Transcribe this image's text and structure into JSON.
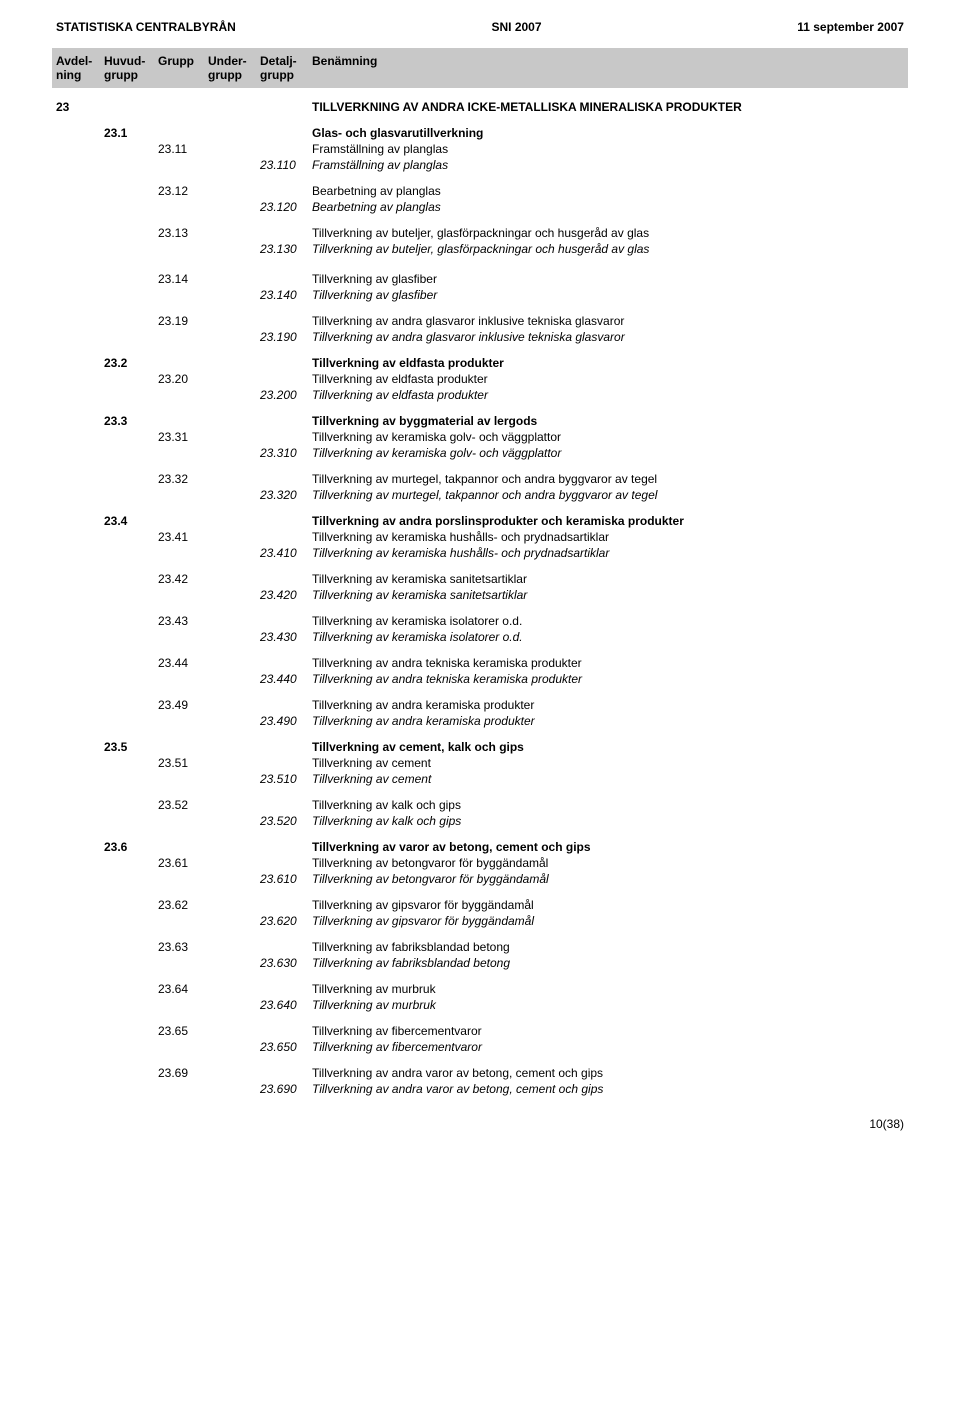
{
  "header": {
    "left": "STATISTISKA CENTRALBYRÅN",
    "center": "SNI 2007",
    "right": "11 september 2007"
  },
  "columnHeaders": {
    "avdelning": "Avdel-\nning",
    "huvudgrupp": "Huvud-\ngrupp",
    "grupp": "Grupp",
    "undergrupp": "Under-\ngrupp",
    "detaljgrupp": "Detalj-\ngrupp",
    "benamning": "Benämning"
  },
  "pageNumber": "10(38)",
  "rows": [
    {
      "avdelning": "23",
      "huvudgrupp": "",
      "grupp": "",
      "undergrupp": "",
      "detaljgrupp": "",
      "benamning": "TILLVERKNING AV ANDRA ICKE-METALLISKA MINERALISKA PRODUKTER",
      "bold": true,
      "gapBefore": 4,
      "gapAfter": 10
    },
    {
      "avdelning": "",
      "huvudgrupp": "23.1",
      "grupp": "",
      "undergrupp": "",
      "detaljgrupp": "",
      "benamning": "Glas- och glasvarutillverkning",
      "bold": true
    },
    {
      "avdelning": "",
      "huvudgrupp": "",
      "grupp": "23.11",
      "undergrupp": "",
      "detaljgrupp": "",
      "benamning": "Framställning av planglas"
    },
    {
      "avdelning": "",
      "huvudgrupp": "",
      "grupp": "",
      "undergrupp": "",
      "detaljgrupp": "23.110",
      "benamning": "Framställning av planglas",
      "italic": true,
      "gapAfter": 10
    },
    {
      "avdelning": "",
      "huvudgrupp": "",
      "grupp": "23.12",
      "undergrupp": "",
      "detaljgrupp": "",
      "benamning": "Bearbetning av planglas"
    },
    {
      "avdelning": "",
      "huvudgrupp": "",
      "grupp": "",
      "undergrupp": "",
      "detaljgrupp": "23.120",
      "benamning": "Bearbetning av planglas",
      "italic": true,
      "gapAfter": 10
    },
    {
      "avdelning": "",
      "huvudgrupp": "",
      "grupp": "23.13",
      "undergrupp": "",
      "detaljgrupp": "",
      "benamning": "Tillverkning av buteljer, glasförpackningar och husgeråd av glas"
    },
    {
      "avdelning": "",
      "huvudgrupp": "",
      "grupp": "",
      "undergrupp": "",
      "detaljgrupp": "23.130",
      "benamning": "Tillverkning av buteljer, glasförpackningar och husgeråd av glas",
      "italic": true,
      "gapAfter": 14
    },
    {
      "avdelning": "",
      "huvudgrupp": "",
      "grupp": "23.14",
      "undergrupp": "",
      "detaljgrupp": "",
      "benamning": "Tillverkning av glasfiber"
    },
    {
      "avdelning": "",
      "huvudgrupp": "",
      "grupp": "",
      "undergrupp": "",
      "detaljgrupp": "23.140",
      "benamning": "Tillverkning av glasfiber",
      "italic": true,
      "gapAfter": 10
    },
    {
      "avdelning": "",
      "huvudgrupp": "",
      "grupp": "23.19",
      "undergrupp": "",
      "detaljgrupp": "",
      "benamning": "Tillverkning av andra glasvaror inklusive tekniska glasvaror"
    },
    {
      "avdelning": "",
      "huvudgrupp": "",
      "grupp": "",
      "undergrupp": "",
      "detaljgrupp": "23.190",
      "benamning": "Tillverkning av andra glasvaror inklusive tekniska glasvaror",
      "italic": true,
      "gapAfter": 10
    },
    {
      "avdelning": "",
      "huvudgrupp": "23.2",
      "grupp": "",
      "undergrupp": "",
      "detaljgrupp": "",
      "benamning": "Tillverkning av eldfasta produkter",
      "bold": true
    },
    {
      "avdelning": "",
      "huvudgrupp": "",
      "grupp": "23.20",
      "undergrupp": "",
      "detaljgrupp": "",
      "benamning": "Tillverkning av eldfasta produkter"
    },
    {
      "avdelning": "",
      "huvudgrupp": "",
      "grupp": "",
      "undergrupp": "",
      "detaljgrupp": "23.200",
      "benamning": "Tillverkning av eldfasta produkter",
      "italic": true,
      "gapAfter": 10
    },
    {
      "avdelning": "",
      "huvudgrupp": "23.3",
      "grupp": "",
      "undergrupp": "",
      "detaljgrupp": "",
      "benamning": "Tillverkning av byggmaterial av lergods",
      "bold": true
    },
    {
      "avdelning": "",
      "huvudgrupp": "",
      "grupp": "23.31",
      "undergrupp": "",
      "detaljgrupp": "",
      "benamning": "Tillverkning av keramiska golv- och väggplattor"
    },
    {
      "avdelning": "",
      "huvudgrupp": "",
      "grupp": "",
      "undergrupp": "",
      "detaljgrupp": "23.310",
      "benamning": "Tillverkning av keramiska golv- och väggplattor",
      "italic": true,
      "gapAfter": 10
    },
    {
      "avdelning": "",
      "huvudgrupp": "",
      "grupp": "23.32",
      "undergrupp": "",
      "detaljgrupp": "",
      "benamning": "Tillverkning av murtegel, takpannor och andra byggvaror av tegel"
    },
    {
      "avdelning": "",
      "huvudgrupp": "",
      "grupp": "",
      "undergrupp": "",
      "detaljgrupp": "23.320",
      "benamning": "Tillverkning av murtegel, takpannor och andra byggvaror av tegel",
      "italic": true,
      "gapAfter": 10
    },
    {
      "avdelning": "",
      "huvudgrupp": "23.4",
      "grupp": "",
      "undergrupp": "",
      "detaljgrupp": "",
      "benamning": "Tillverkning av andra porslinsprodukter och keramiska produkter",
      "bold": true
    },
    {
      "avdelning": "",
      "huvudgrupp": "",
      "grupp": "23.41",
      "undergrupp": "",
      "detaljgrupp": "",
      "benamning": "Tillverkning av keramiska hushålls- och prydnadsartiklar"
    },
    {
      "avdelning": "",
      "huvudgrupp": "",
      "grupp": "",
      "undergrupp": "",
      "detaljgrupp": "23.410",
      "benamning": "Tillverkning av keramiska hushålls- och prydnadsartiklar",
      "italic": true,
      "gapAfter": 10
    },
    {
      "avdelning": "",
      "huvudgrupp": "",
      "grupp": "23.42",
      "undergrupp": "",
      "detaljgrupp": "",
      "benamning": "Tillverkning av keramiska sanitetsartiklar"
    },
    {
      "avdelning": "",
      "huvudgrupp": "",
      "grupp": "",
      "undergrupp": "",
      "detaljgrupp": "23.420",
      "benamning": "Tillverkning av keramiska sanitetsartiklar",
      "italic": true,
      "gapAfter": 10
    },
    {
      "avdelning": "",
      "huvudgrupp": "",
      "grupp": "23.43",
      "undergrupp": "",
      "detaljgrupp": "",
      "benamning": "Tillverkning av keramiska isolatorer o.d."
    },
    {
      "avdelning": "",
      "huvudgrupp": "",
      "grupp": "",
      "undergrupp": "",
      "detaljgrupp": "23.430",
      "benamning": "Tillverkning av keramiska isolatorer o.d.",
      "italic": true,
      "gapAfter": 10
    },
    {
      "avdelning": "",
      "huvudgrupp": "",
      "grupp": "23.44",
      "undergrupp": "",
      "detaljgrupp": "",
      "benamning": "Tillverkning av andra tekniska keramiska produkter"
    },
    {
      "avdelning": "",
      "huvudgrupp": "",
      "grupp": "",
      "undergrupp": "",
      "detaljgrupp": "23.440",
      "benamning": "Tillverkning av andra tekniska keramiska produkter",
      "italic": true,
      "gapAfter": 10
    },
    {
      "avdelning": "",
      "huvudgrupp": "",
      "grupp": "23.49",
      "undergrupp": "",
      "detaljgrupp": "",
      "benamning": "Tillverkning av andra keramiska produkter"
    },
    {
      "avdelning": "",
      "huvudgrupp": "",
      "grupp": "",
      "undergrupp": "",
      "detaljgrupp": "23.490",
      "benamning": "Tillverkning av andra keramiska produkter",
      "italic": true,
      "gapAfter": 10
    },
    {
      "avdelning": "",
      "huvudgrupp": "23.5",
      "grupp": "",
      "undergrupp": "",
      "detaljgrupp": "",
      "benamning": "Tillverkning av cement, kalk och gips",
      "bold": true
    },
    {
      "avdelning": "",
      "huvudgrupp": "",
      "grupp": "23.51",
      "undergrupp": "",
      "detaljgrupp": "",
      "benamning": "Tillverkning av cement"
    },
    {
      "avdelning": "",
      "huvudgrupp": "",
      "grupp": "",
      "undergrupp": "",
      "detaljgrupp": "23.510",
      "benamning": "Tillverkning av cement",
      "italic": true,
      "gapAfter": 10
    },
    {
      "avdelning": "",
      "huvudgrupp": "",
      "grupp": "23.52",
      "undergrupp": "",
      "detaljgrupp": "",
      "benamning": "Tillverkning av kalk och gips"
    },
    {
      "avdelning": "",
      "huvudgrupp": "",
      "grupp": "",
      "undergrupp": "",
      "detaljgrupp": "23.520",
      "benamning": "Tillverkning av kalk och gips",
      "italic": true,
      "gapAfter": 10
    },
    {
      "avdelning": "",
      "huvudgrupp": "23.6",
      "grupp": "",
      "undergrupp": "",
      "detaljgrupp": "",
      "benamning": "Tillverkning av varor av betong, cement och gips",
      "bold": true
    },
    {
      "avdelning": "",
      "huvudgrupp": "",
      "grupp": "23.61",
      "undergrupp": "",
      "detaljgrupp": "",
      "benamning": "Tillverkning av betongvaror  för byggändamål"
    },
    {
      "avdelning": "",
      "huvudgrupp": "",
      "grupp": "",
      "undergrupp": "",
      "detaljgrupp": "23.610",
      "benamning": "Tillverkning av betongvaror  för byggändamål",
      "italic": true,
      "gapAfter": 10
    },
    {
      "avdelning": "",
      "huvudgrupp": "",
      "grupp": "23.62",
      "undergrupp": "",
      "detaljgrupp": "",
      "benamning": "Tillverkning av gipsvaror  för byggändamål"
    },
    {
      "avdelning": "",
      "huvudgrupp": "",
      "grupp": "",
      "undergrupp": "",
      "detaljgrupp": "23.620",
      "benamning": "Tillverkning av gipsvaror  för byggändamål",
      "italic": true,
      "gapAfter": 10
    },
    {
      "avdelning": "",
      "huvudgrupp": "",
      "grupp": "23.63",
      "undergrupp": "",
      "detaljgrupp": "",
      "benamning": "Tillverkning av fabriksblandad betong"
    },
    {
      "avdelning": "",
      "huvudgrupp": "",
      "grupp": "",
      "undergrupp": "",
      "detaljgrupp": "23.630",
      "benamning": "Tillverkning av fabriksblandad betong",
      "italic": true,
      "gapAfter": 10
    },
    {
      "avdelning": "",
      "huvudgrupp": "",
      "grupp": "23.64",
      "undergrupp": "",
      "detaljgrupp": "",
      "benamning": "Tillverkning av murbruk"
    },
    {
      "avdelning": "",
      "huvudgrupp": "",
      "grupp": "",
      "undergrupp": "",
      "detaljgrupp": "23.640",
      "benamning": "Tillverkning av murbruk",
      "italic": true,
      "gapAfter": 10
    },
    {
      "avdelning": "",
      "huvudgrupp": "",
      "grupp": "23.65",
      "undergrupp": "",
      "detaljgrupp": "",
      "benamning": "Tillverkning av fibercementvaror"
    },
    {
      "avdelning": "",
      "huvudgrupp": "",
      "grupp": "",
      "undergrupp": "",
      "detaljgrupp": "23.650",
      "benamning": "Tillverkning av fibercementvaror",
      "italic": true,
      "gapAfter": 10
    },
    {
      "avdelning": "",
      "huvudgrupp": "",
      "grupp": "23.69",
      "undergrupp": "",
      "detaljgrupp": "",
      "benamning": "Tillverkning av andra varor av betong, cement och gips"
    },
    {
      "avdelning": "",
      "huvudgrupp": "",
      "grupp": "",
      "undergrupp": "",
      "detaljgrupp": "23.690",
      "benamning": "Tillverkning av andra varor av betong, cement och gips",
      "italic": true
    }
  ]
}
